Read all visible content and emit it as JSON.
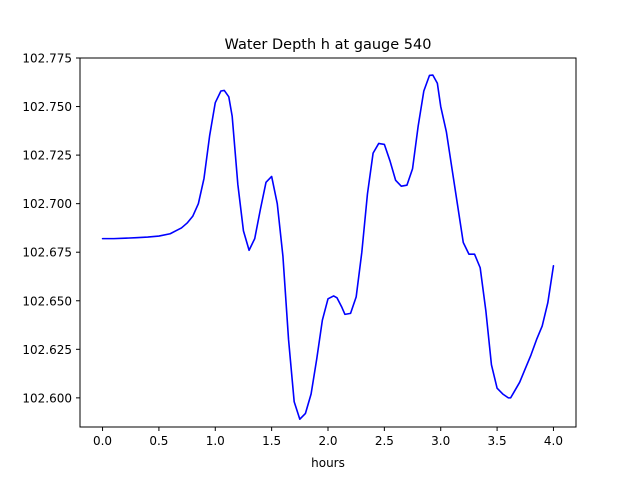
{
  "chart_data": {
    "type": "line",
    "title": "Water Depth h at gauge 540",
    "xlabel": "hours",
    "ylabel": "",
    "xlim": [
      -0.2,
      4.2
    ],
    "ylim": [
      102.585,
      102.775
    ],
    "grid": false,
    "line_color": "#0000ff",
    "x_ticks": [
      "0.0",
      "0.5",
      "1.0",
      "1.5",
      "2.0",
      "2.5",
      "3.0",
      "3.5",
      "4.0"
    ],
    "y_ticks": [
      "102.600",
      "102.625",
      "102.650",
      "102.675",
      "102.700",
      "102.725",
      "102.750",
      "102.775"
    ],
    "series": [
      {
        "x": [
          0.0,
          0.1,
          0.2,
          0.3,
          0.4,
          0.5,
          0.6,
          0.65,
          0.7,
          0.75,
          0.8,
          0.85,
          0.9,
          0.95,
          1.0,
          1.05,
          1.08,
          1.12,
          1.15,
          1.2,
          1.25,
          1.3,
          1.35,
          1.4,
          1.45,
          1.5,
          1.55,
          1.6,
          1.65,
          1.7,
          1.75,
          1.8,
          1.85,
          1.9,
          1.95,
          2.0,
          2.05,
          2.08,
          2.12,
          2.15,
          2.2,
          2.25,
          2.3,
          2.35,
          2.4,
          2.45,
          2.5,
          2.55,
          2.6,
          2.65,
          2.7,
          2.75,
          2.8,
          2.85,
          2.9,
          2.93,
          2.97,
          3.0,
          3.05,
          3.1,
          3.15,
          3.2,
          3.25,
          3.3,
          3.35,
          3.4,
          3.45,
          3.5,
          3.55,
          3.6,
          3.62,
          3.65,
          3.7,
          3.75,
          3.8,
          3.85,
          3.9,
          3.95,
          4.0
        ],
        "y": [
          102.682,
          102.682,
          102.6822,
          102.6825,
          102.6828,
          102.6833,
          102.6845,
          102.686,
          102.6875,
          102.69,
          102.6935,
          102.7,
          102.713,
          102.735,
          102.752,
          102.758,
          102.7583,
          102.755,
          102.745,
          102.71,
          102.686,
          102.676,
          102.682,
          102.697,
          102.711,
          102.714,
          102.7,
          102.673,
          102.63,
          102.598,
          102.589,
          102.592,
          102.602,
          102.62,
          102.64,
          102.651,
          102.6525,
          102.6515,
          102.647,
          102.643,
          102.6435,
          102.652,
          102.675,
          102.705,
          102.726,
          102.731,
          102.7305,
          102.722,
          102.712,
          102.709,
          102.7095,
          102.718,
          102.74,
          102.758,
          102.766,
          102.7662,
          102.762,
          102.75,
          102.737,
          102.718,
          102.699,
          102.68,
          102.674,
          102.674,
          102.667,
          102.645,
          102.617,
          102.605,
          102.602,
          102.6,
          102.6,
          102.603,
          102.608,
          102.615,
          102.622,
          102.63,
          102.637,
          102.649,
          102.668
        ]
      }
    ]
  }
}
